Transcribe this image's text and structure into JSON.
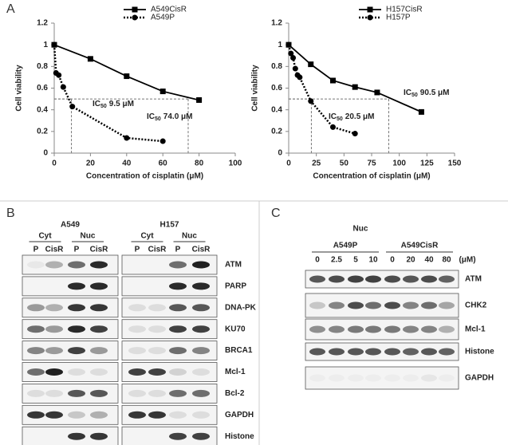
{
  "panel_labels": [
    "A",
    "B",
    "C"
  ],
  "chart_data": [
    {
      "type": "line",
      "legend": "top-right",
      "xlabel": "Concentration of cisplatin (μM)",
      "ylabel": "Cell viability",
      "xlim": [
        0,
        100
      ],
      "xticks": [
        0,
        20,
        40,
        60,
        80,
        100
      ],
      "ylim": [
        0,
        1.2
      ],
      "yticks": [
        0,
        0.2,
        0.4,
        0.6,
        0.8,
        1,
        1.2
      ],
      "series": [
        {
          "name": "A549CisR",
          "color": "#000000",
          "marker": "square",
          "dash": "solid",
          "x": [
            0,
            20,
            40,
            60,
            80
          ],
          "values": [
            1.0,
            0.87,
            0.71,
            0.57,
            0.49
          ]
        },
        {
          "name": "A549P",
          "color": "#000000",
          "marker": "circle",
          "dash": "dotted",
          "x": [
            0,
            1,
            2.5,
            5,
            10,
            40,
            60
          ],
          "values": [
            1.0,
            0.74,
            0.72,
            0.61,
            0.43,
            0.14,
            0.11
          ]
        }
      ],
      "annotations": [
        {
          "prefix": "IC",
          "sub": "50",
          "x": 74.0,
          "y": 0.5,
          "label": "74.0 μM"
        },
        {
          "prefix": "IC",
          "sub": "50",
          "x": 9.5,
          "y": 0.5,
          "label": "9.5 μM"
        }
      ]
    },
    {
      "type": "line",
      "legend": "top-right",
      "xlabel": "Concentration of cisplatin (μM)",
      "ylabel": "Cell viability",
      "xlim": [
        0,
        150
      ],
      "xticks": [
        0,
        25,
        50,
        75,
        100,
        125,
        150
      ],
      "ylim": [
        0,
        1.2
      ],
      "yticks": [
        0,
        0.2,
        0.4,
        0.6,
        0.8,
        1,
        1.2
      ],
      "series": [
        {
          "name": "H157CisR",
          "color": "#000000",
          "marker": "square",
          "dash": "solid",
          "x": [
            0,
            20,
            40,
            60,
            80,
            120
          ],
          "values": [
            1.0,
            0.82,
            0.67,
            0.61,
            0.56,
            0.38
          ]
        },
        {
          "name": "H157P",
          "color": "#000000",
          "marker": "circle",
          "dash": "dotted",
          "x": [
            0,
            2,
            4,
            6,
            8,
            10,
            20,
            40,
            60
          ],
          "values": [
            1.0,
            0.92,
            0.88,
            0.78,
            0.72,
            0.7,
            0.48,
            0.24,
            0.18
          ]
        }
      ],
      "annotations": [
        {
          "prefix": "IC",
          "sub": "50",
          "x": 90.5,
          "y": 0.5,
          "label": "90.5 μM"
        },
        {
          "prefix": "IC",
          "sub": "50",
          "x": 20.5,
          "y": 0.5,
          "label": "20.5 μM"
        }
      ]
    }
  ],
  "blot_b": {
    "groups": [
      {
        "cell_line": "A549",
        "fractions": [
          "Cyt",
          "Nuc"
        ],
        "lanes": [
          "P",
          "CisR",
          "P",
          "CisR"
        ]
      },
      {
        "cell_line": "H157",
        "fractions": [
          "Cyt",
          "Nuc"
        ],
        "lanes": [
          "P",
          "CisR",
          "P",
          "CisR"
        ]
      }
    ],
    "proteins": [
      "ATM",
      "PARP",
      "DNA-PK",
      "KU70",
      "BRCA1",
      "Mcl-1",
      "Bcl-2",
      "GAPDH",
      "Histone"
    ]
  },
  "blot_c": {
    "fraction": "Nuc",
    "groups": [
      "A549P",
      "A549CisR"
    ],
    "lanes": [
      "0",
      "2.5",
      "5",
      "10",
      "0",
      "20",
      "40",
      "80"
    ],
    "unit": "(μM)",
    "proteins": [
      "ATM",
      "CHK2",
      "Mcl-1",
      "Histone",
      "GAPDH"
    ]
  }
}
